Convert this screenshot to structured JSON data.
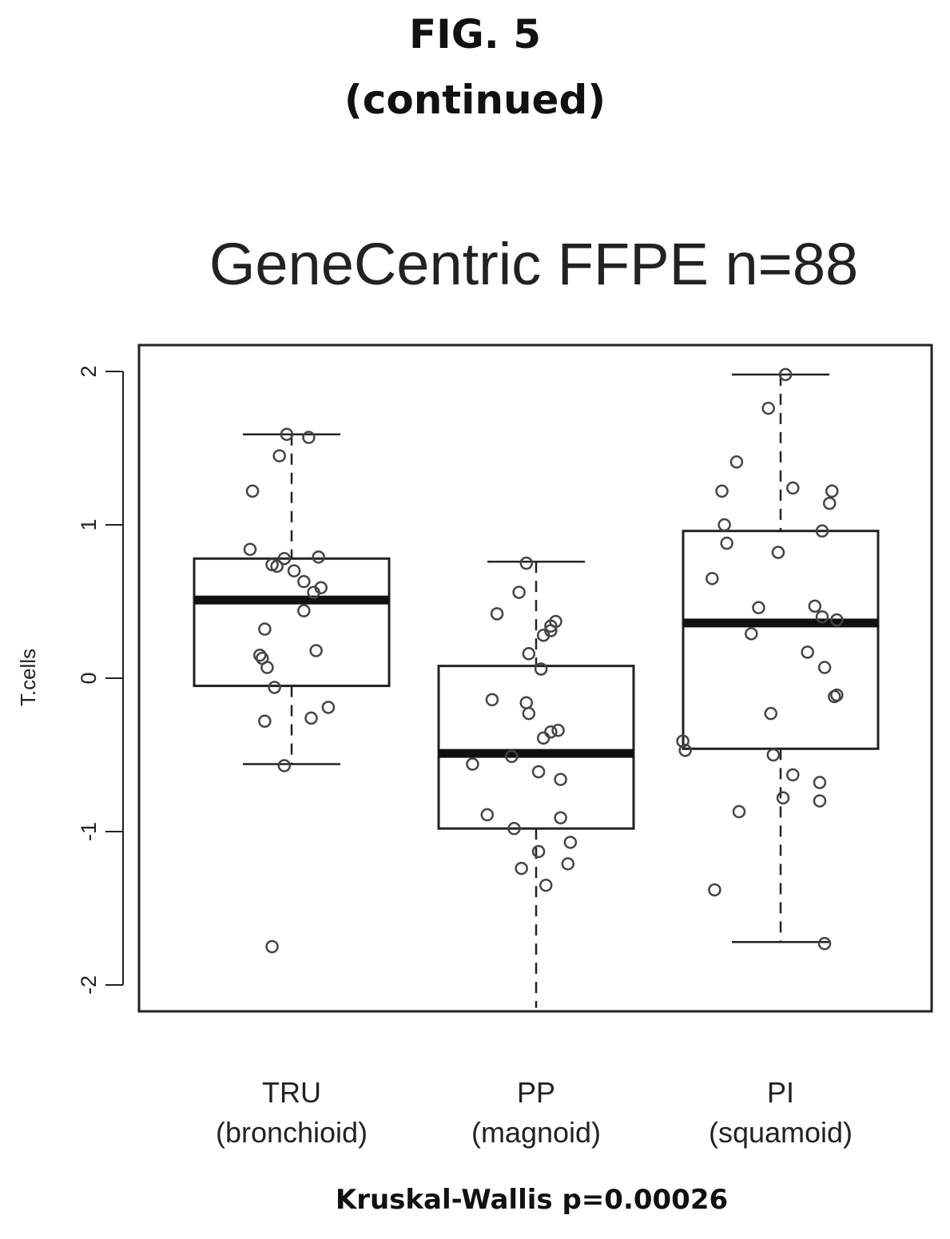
{
  "figure": {
    "title": "FIG. 5",
    "subtitle": "(continued)"
  },
  "chart_data": {
    "type": "box",
    "title": "GeneCentric FFPE n=88",
    "ylabel": "T.cells",
    "xlabel": "",
    "footnote": "Kruskal-Wallis p=0.00026",
    "ylim": [
      -2.15,
      2.18
    ],
    "yticks": [
      -2,
      -1,
      0,
      1,
      2
    ],
    "grid": false,
    "categories": [
      {
        "label": "TRU",
        "sublabel": "(bronchioid)"
      },
      {
        "label": "PP",
        "sublabel": "(magnoid)"
      },
      {
        "label": "PI",
        "sublabel": "(squamoid)"
      }
    ],
    "boxes": [
      {
        "whisker_low": -0.56,
        "q1": -0.05,
        "median": 0.51,
        "q3": 0.78,
        "whisker_high": 1.59
      },
      {
        "whisker_low": -2.15,
        "q1": -0.98,
        "median": -0.49,
        "q3": 0.08,
        "whisker_high": 0.76
      },
      {
        "whisker_low": -1.72,
        "q1": -0.46,
        "median": 0.36,
        "q3": 0.96,
        "whisker_high": 1.98
      }
    ],
    "points": [
      [
        {
          "x": 0.84,
          "y": 1.22
        },
        {
          "x": 0.98,
          "y": 1.59
        },
        {
          "x": 0.95,
          "y": 1.45
        },
        {
          "x": 1.07,
          "y": 1.57
        },
        {
          "x": 0.83,
          "y": 0.84
        },
        {
          "x": 0.92,
          "y": 0.74
        },
        {
          "x": 0.94,
          "y": 0.73
        },
        {
          "x": 0.97,
          "y": 0.78
        },
        {
          "x": 1.01,
          "y": 0.7
        },
        {
          "x": 1.05,
          "y": 0.63
        },
        {
          "x": 1.11,
          "y": 0.79
        },
        {
          "x": 1.09,
          "y": 0.56
        },
        {
          "x": 1.12,
          "y": 0.59
        },
        {
          "x": 1.05,
          "y": 0.44
        },
        {
          "x": 0.89,
          "y": 0.32
        },
        {
          "x": 0.87,
          "y": 0.15
        },
        {
          "x": 0.88,
          "y": 0.13
        },
        {
          "x": 0.9,
          "y": 0.07
        },
        {
          "x": 1.1,
          "y": 0.18
        },
        {
          "x": 0.93,
          "y": -0.06
        },
        {
          "x": 0.89,
          "y": -0.28
        },
        {
          "x": 1.08,
          "y": -0.26
        },
        {
          "x": 1.15,
          "y": -0.19
        },
        {
          "x": 0.97,
          "y": -0.57
        },
        {
          "x": 0.92,
          "y": -1.75
        }
      ],
      [
        {
          "x": 1.96,
          "y": 0.75
        },
        {
          "x": 1.93,
          "y": 0.56
        },
        {
          "x": 1.84,
          "y": 0.42
        },
        {
          "x": 2.06,
          "y": 0.34
        },
        {
          "x": 2.08,
          "y": 0.37
        },
        {
          "x": 2.03,
          "y": 0.28
        },
        {
          "x": 2.06,
          "y": 0.31
        },
        {
          "x": 1.97,
          "y": 0.16
        },
        {
          "x": 2.02,
          "y": 0.06
        },
        {
          "x": 1.82,
          "y": -0.14
        },
        {
          "x": 1.96,
          "y": -0.16
        },
        {
          "x": 1.97,
          "y": -0.23
        },
        {
          "x": 2.09,
          "y": -0.34
        },
        {
          "x": 2.03,
          "y": -0.39
        },
        {
          "x": 2.06,
          "y": -0.35
        },
        {
          "x": 1.74,
          "y": -0.56
        },
        {
          "x": 1.9,
          "y": -0.51
        },
        {
          "x": 2.01,
          "y": -0.61
        },
        {
          "x": 2.1,
          "y": -0.66
        },
        {
          "x": 1.8,
          "y": -0.89
        },
        {
          "x": 2.1,
          "y": -0.91
        },
        {
          "x": 1.91,
          "y": -0.98
        },
        {
          "x": 2.14,
          "y": -1.07
        },
        {
          "x": 2.01,
          "y": -1.13
        },
        {
          "x": 1.94,
          "y": -1.24
        },
        {
          "x": 2.13,
          "y": -1.21
        },
        {
          "x": 2.04,
          "y": -1.35
        }
      ],
      [
        {
          "x": 3.02,
          "y": 1.98
        },
        {
          "x": 2.95,
          "y": 1.76
        },
        {
          "x": 2.82,
          "y": 1.41
        },
        {
          "x": 3.05,
          "y": 1.24
        },
        {
          "x": 2.76,
          "y": 1.22
        },
        {
          "x": 3.21,
          "y": 1.22
        },
        {
          "x": 3.2,
          "y": 1.14
        },
        {
          "x": 2.77,
          "y": 1.0
        },
        {
          "x": 3.17,
          "y": 0.96
        },
        {
          "x": 2.78,
          "y": 0.88
        },
        {
          "x": 2.99,
          "y": 0.82
        },
        {
          "x": 2.72,
          "y": 0.65
        },
        {
          "x": 2.91,
          "y": 0.46
        },
        {
          "x": 3.14,
          "y": 0.47
        },
        {
          "x": 3.17,
          "y": 0.4
        },
        {
          "x": 3.23,
          "y": 0.38
        },
        {
          "x": 2.88,
          "y": 0.29
        },
        {
          "x": 3.11,
          "y": 0.17
        },
        {
          "x": 3.18,
          "y": 0.07
        },
        {
          "x": 3.22,
          "y": -0.12
        },
        {
          "x": 3.23,
          "y": -0.11
        },
        {
          "x": 2.96,
          "y": -0.23
        },
        {
          "x": 2.6,
          "y": -0.41
        },
        {
          "x": 2.61,
          "y": -0.47
        },
        {
          "x": 2.97,
          "y": -0.5
        },
        {
          "x": 3.05,
          "y": -0.63
        },
        {
          "x": 3.16,
          "y": -0.68
        },
        {
          "x": 3.01,
          "y": -0.78
        },
        {
          "x": 3.16,
          "y": -0.8
        },
        {
          "x": 2.83,
          "y": -0.87
        },
        {
          "x": 2.73,
          "y": -1.38
        },
        {
          "x": 3.18,
          "y": -1.73
        }
      ]
    ]
  }
}
